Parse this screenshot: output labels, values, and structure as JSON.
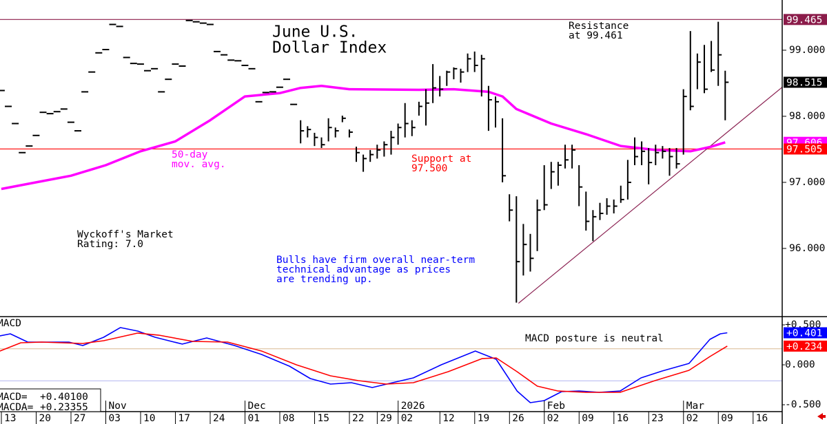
{
  "chart_data": [
    {
      "type": "ohlc",
      "title": [
        "June U.S.",
        "Dollar Index"
      ],
      "xlim": [
        -1.19,
        111.19
      ],
      "ylim": [
        95.02,
        99.76
      ],
      "yticks": [
        {
          "value": 99,
          "label": "99.000"
        },
        {
          "value": 98,
          "label": "98.000"
        },
        {
          "value": 97,
          "label": "97.000"
        },
        {
          "value": 96,
          "label": "96.000"
        }
      ],
      "color": "#000000",
      "x": [
        -1,
        0,
        1,
        2,
        3,
        4,
        5,
        6,
        7,
        8,
        9,
        10,
        11,
        12,
        13,
        14,
        15,
        16,
        17,
        18,
        19,
        20,
        21,
        22,
        23,
        24,
        25,
        26,
        27,
        28,
        29,
        30,
        31,
        32,
        33,
        34,
        35,
        36,
        37,
        38,
        39,
        40,
        41,
        42,
        43,
        44,
        45,
        46,
        47,
        48,
        49,
        50,
        51,
        52,
        53,
        54,
        55,
        56,
        57,
        58,
        59,
        60,
        61,
        62,
        63,
        64,
        65,
        66,
        67,
        68,
        69,
        70,
        71,
        72,
        73,
        74,
        75,
        76,
        77,
        78,
        79,
        80,
        81,
        82,
        83,
        84,
        85,
        86,
        87,
        88,
        89,
        90,
        91,
        92,
        93,
        94,
        95,
        96,
        97,
        98,
        99,
        100,
        101,
        102,
        103
      ],
      "high": [
        98.39,
        98.15,
        97.89,
        97.45,
        97.55,
        97.71,
        98.06,
        98.04,
        98.07,
        98.11,
        97.91,
        97.78,
        98.37,
        98.67,
        98.96,
        99.01,
        99.39,
        99.36,
        98.89,
        98.8,
        98.79,
        98.69,
        98.72,
        98.37,
        98.56,
        98.79,
        98.76,
        99.45,
        99.43,
        99.41,
        99.39,
        98.98,
        98.93,
        98.85,
        98.84,
        98.77,
        98.72,
        98.22,
        98.36,
        98.37,
        98.44,
        98.56,
        98.18,
        97.94,
        97.85,
        97.75,
        97.68,
        97.97,
        97.83,
        98.01,
        97.8,
        97.54,
        97.42,
        97.49,
        97.57,
        97.62,
        97.78,
        97.89,
        98.2,
        97.94,
        98.22,
        98.41,
        98.79,
        98.61,
        98.69,
        98.74,
        98.72,
        98.95,
        98.98,
        98.93,
        98.46,
        98.3,
        97.97,
        96.82,
        96.79,
        96.37,
        96.22,
        96.74,
        97.26,
        97.31,
        97.31,
        97.57,
        97.57,
        97.26,
        96.86,
        96.58,
        96.69,
        96.76,
        96.74,
        96.95,
        97.34,
        97.68,
        97.62,
        97.52,
        97.57,
        97.55,
        97.52,
        97.52,
        98.41,
        99.29,
        98.95,
        99.08,
        99.14,
        99.43,
        98.69
      ],
      "low": [
        98.39,
        98.15,
        97.89,
        97.45,
        97.55,
        97.71,
        98.06,
        98.04,
        98.07,
        98.11,
        97.91,
        97.78,
        98.37,
        98.67,
        98.96,
        99.01,
        99.39,
        99.36,
        98.89,
        98.8,
        98.79,
        98.69,
        98.72,
        98.37,
        98.56,
        98.79,
        98.76,
        99.45,
        99.43,
        99.41,
        99.39,
        98.98,
        98.93,
        98.85,
        98.84,
        98.77,
        98.72,
        98.22,
        98.36,
        98.37,
        98.44,
        98.56,
        98.18,
        97.59,
        97.68,
        97.55,
        97.52,
        97.62,
        97.68,
        97.91,
        97.68,
        97.31,
        97.16,
        97.31,
        97.36,
        97.39,
        97.42,
        97.57,
        97.68,
        97.7,
        98.01,
        97.86,
        98.2,
        98.3,
        98.46,
        98.56,
        98.51,
        98.67,
        98.67,
        98.3,
        97.78,
        97.83,
        97.0,
        96.41,
        95.18,
        95.59,
        95.65,
        95.96,
        96.58,
        96.9,
        96.95,
        97.21,
        97.21,
        96.64,
        96.27,
        96.11,
        96.43,
        96.51,
        96.53,
        96.69,
        96.74,
        97.26,
        97.26,
        96.97,
        97.26,
        97.36,
        97.1,
        97.21,
        97.42,
        98.09,
        98.41,
        98.35,
        98.67,
        98.46,
        97.94
      ],
      "close": [
        98.39,
        98.15,
        97.89,
        97.45,
        97.55,
        97.71,
        98.06,
        98.04,
        98.07,
        98.11,
        97.91,
        97.78,
        98.37,
        98.67,
        98.96,
        99.01,
        99.39,
        99.36,
        98.89,
        98.8,
        98.79,
        98.69,
        98.72,
        98.37,
        98.56,
        98.79,
        98.76,
        99.45,
        99.43,
        99.41,
        99.39,
        98.98,
        98.93,
        98.85,
        98.84,
        98.77,
        98.72,
        98.22,
        98.36,
        98.37,
        98.44,
        98.56,
        98.18,
        97.78,
        97.8,
        97.68,
        97.57,
        97.83,
        97.78,
        97.97,
        97.76,
        97.45,
        97.36,
        97.42,
        97.49,
        97.57,
        97.68,
        97.83,
        97.89,
        97.83,
        98.15,
        98.2,
        98.43,
        98.41,
        98.67,
        98.72,
        98.67,
        98.87,
        98.77,
        98.87,
        98.25,
        98.22,
        97.1,
        96.58,
        95.8,
        96.06,
        95.85,
        96.58,
        96.66,
        97.16,
        97.26,
        97.34,
        97.49,
        96.93,
        96.41,
        96.48,
        96.53,
        96.64,
        96.64,
        96.74,
        97.0,
        97.39,
        97.47,
        97.3,
        97.45,
        97.47,
        97.39,
        97.28,
        98.3,
        98.15,
        98.82,
        98.41,
        98.7,
        98.93,
        98.515
      ],
      "series": [
        {
          "name": [
            "50-day",
            "mov. avg."
          ],
          "color": "#ff00ff",
          "x": [
            -1,
            4,
            9,
            14,
            19,
            24,
            29,
            34,
            39,
            42,
            45,
            49,
            59,
            64,
            69,
            71,
            73,
            78,
            83,
            88,
            93,
            98,
            101,
            103
          ],
          "values": [
            96.9,
            97.0,
            97.1,
            97.26,
            97.47,
            97.62,
            97.94,
            98.3,
            98.35,
            98.43,
            98.46,
            98.41,
            98.4,
            98.41,
            98.37,
            98.3,
            98.11,
            97.89,
            97.73,
            97.55,
            97.49,
            97.47,
            97.54,
            97.606
          ]
        }
      ],
      "trendline": {
        "x": [
          73.3,
          111.19
        ],
        "values": [
          95.17,
          98.44
        ],
        "color": "#8b2252"
      },
      "levels": [
        {
          "value": 99.465,
          "label": "99.465",
          "color": "#8b1c4a"
        },
        {
          "value": 97.505,
          "label": "97.505",
          "color": "#ff0000"
        }
      ],
      "last_labels": [
        {
          "value": 98.515,
          "color": "#000000"
        },
        {
          "value": 97.606,
          "color": "#ff00ff"
        }
      ],
      "annotations": [
        {
          "text": [
            "Resistance",
            "at 99.461"
          ],
          "color": "#000000"
        },
        {
          "text": [
            "Support at",
            "97.500"
          ],
          "color": "#ff0000"
        },
        {
          "text": [
            "Wyckoff's Market",
            "Rating: 7.0"
          ],
          "color": "#000000"
        },
        {
          "text": [
            "Bulls have firm overall near-term",
            "technical advantage as prices",
            "are trending up."
          ],
          "color": "#0000ff"
        }
      ]
    },
    {
      "type": "line",
      "title": "MACD",
      "xlim": [
        -1.19,
        111.19
      ],
      "ylim": [
        -0.586,
        0.586
      ],
      "yticks": [
        {
          "value": 0.5,
          "label": "+0.500"
        },
        {
          "value": 0,
          "label": "0.000"
        },
        {
          "value": -0.5,
          "label": "-0.500"
        }
      ],
      "levels": [
        {
          "value": 0.2,
          "color": "#d8b890"
        },
        {
          "value": -0.2,
          "color": "#b0b4f0"
        }
      ],
      "series": [
        {
          "name": "MACD=",
          "color": "#0000ff",
          "readout": "+0.40100",
          "last": {
            "value": 0.401,
            "label": "+0.401"
          },
          "x": [
            -1.2,
            0.3,
            2.8,
            4.8,
            8.7,
            10.7,
            13.7,
            16.1,
            18.6,
            21.1,
            25.0,
            28.5,
            32.5,
            36.4,
            40.4,
            43.4,
            46.3,
            49.3,
            52.3,
            55.2,
            58.2,
            62.2,
            67.1,
            70.1,
            73.1,
            75.0,
            77.0,
            79.5,
            82.0,
            84.9,
            87.9,
            90.9,
            93.9,
            97.8,
            100.8,
            102.3,
            103.3
          ],
          "values": [
            0.362,
            0.388,
            0.284,
            0.284,
            0.284,
            0.241,
            0.345,
            0.466,
            0.422,
            0.345,
            0.259,
            0.336,
            0.241,
            0.129,
            -0.017,
            -0.172,
            -0.241,
            -0.224,
            -0.284,
            -0.224,
            -0.164,
            0,
            0.172,
            0.069,
            -0.328,
            -0.474,
            -0.448,
            -0.336,
            -0.328,
            -0.345,
            -0.328,
            -0.164,
            -0.078,
            0.017,
            0.319,
            0.388,
            0.401
          ]
        },
        {
          "name": "MACDA=",
          "color": "#ff0000",
          "readout": "+0.23355",
          "last": {
            "value": 0.234,
            "label": "+0.234"
          },
          "x": [
            -1.2,
            1.8,
            4.8,
            10.7,
            13.7,
            18.6,
            21.6,
            26.5,
            31.5,
            36.4,
            41.4,
            46.3,
            50.3,
            54.3,
            58.2,
            63.2,
            68.1,
            70.1,
            73.1,
            76.0,
            79.0,
            83.0,
            87.9,
            92.9,
            97.8,
            100.8,
            103.3
          ],
          "values": [
            0.172,
            0.276,
            0.284,
            0.267,
            0.302,
            0.397,
            0.371,
            0.293,
            0.284,
            0.172,
            0,
            -0.138,
            -0.198,
            -0.241,
            -0.224,
            -0.086,
            0.078,
            0.086,
            -0.086,
            -0.267,
            -0.328,
            -0.345,
            -0.345,
            -0.198,
            -0.069,
            0.103,
            0.234
          ]
        }
      ],
      "annotation": "MACD posture is neutral",
      "xticks": [
        {
          "value": 0,
          "label": "13"
        },
        {
          "value": 5,
          "label": "20"
        },
        {
          "value": 10,
          "label": "27"
        },
        {
          "value": 15,
          "label": "03"
        },
        {
          "value": 20,
          "label": "10"
        },
        {
          "value": 25,
          "label": "17"
        },
        {
          "value": 30,
          "label": "24"
        },
        {
          "value": 35,
          "label": "01"
        },
        {
          "value": 40,
          "label": "08"
        },
        {
          "value": 45,
          "label": "15"
        },
        {
          "value": 50,
          "label": "22"
        },
        {
          "value": 54,
          "label": "29"
        },
        {
          "value": 57,
          "label": "02"
        },
        {
          "value": 63,
          "label": "12"
        },
        {
          "value": 68,
          "label": "19"
        },
        {
          "value": 73,
          "label": "26"
        },
        {
          "value": 78,
          "label": "02"
        },
        {
          "value": 83,
          "label": "09"
        },
        {
          "value": 88,
          "label": "16"
        },
        {
          "value": 93,
          "label": "23"
        },
        {
          "value": 98,
          "label": "02"
        },
        {
          "value": 103,
          "label": "09"
        },
        {
          "value": 108,
          "label": "16"
        }
      ],
      "month_ticks": [
        {
          "value": 15,
          "label": "Nov"
        },
        {
          "value": 35,
          "label": "Dec"
        },
        {
          "value": 57,
          "label": "2026"
        },
        {
          "value": 78,
          "label": "Feb"
        },
        {
          "value": 98,
          "label": "Mar"
        }
      ]
    }
  ]
}
